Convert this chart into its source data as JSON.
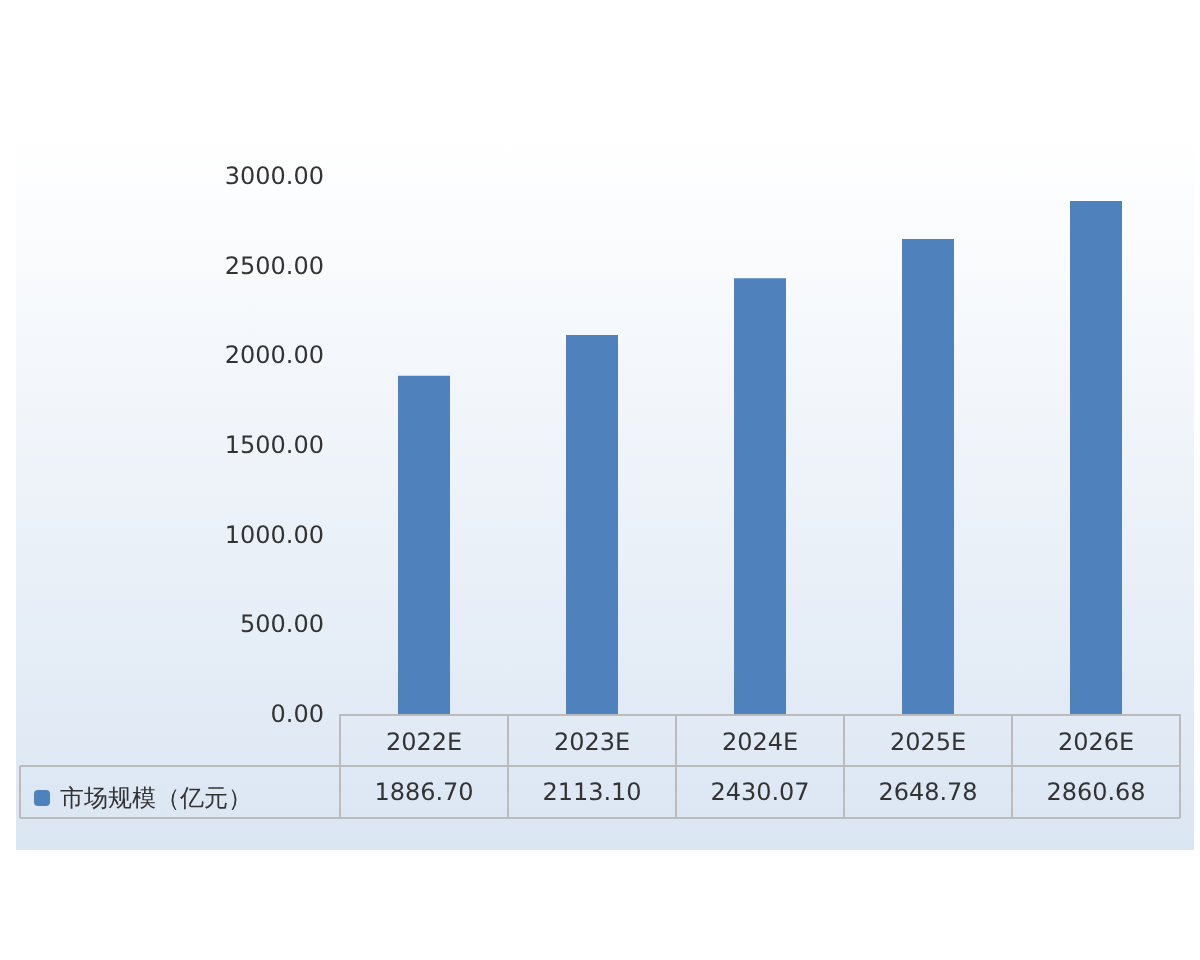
{
  "chart_data": {
    "type": "bar",
    "categories": [
      "2022E",
      "2023E",
      "2024E",
      "2025E",
      "2026E"
    ],
    "series": [
      {
        "name": "市场规模（亿元）",
        "color": "#4f81bd",
        "values": [
          1886.7,
          2113.1,
          2430.07,
          2648.78,
          2860.68
        ],
        "value_labels": [
          "1886.70",
          "2113.10",
          "2430.07",
          "2648.78",
          "2860.68"
        ]
      }
    ],
    "ylim": [
      0,
      3000
    ],
    "yticks": [
      {
        "value": 0,
        "label": "0.00"
      },
      {
        "value": 500,
        "label": "500.00"
      },
      {
        "value": 1000,
        "label": "1000.00"
      },
      {
        "value": 1500,
        "label": "1500.00"
      },
      {
        "value": 2000,
        "label": "2000.00"
      },
      {
        "value": 2500,
        "label": "2500.00"
      },
      {
        "value": 3000,
        "label": "3000.00"
      }
    ],
    "grid": false,
    "legend": "bottom left"
  }
}
